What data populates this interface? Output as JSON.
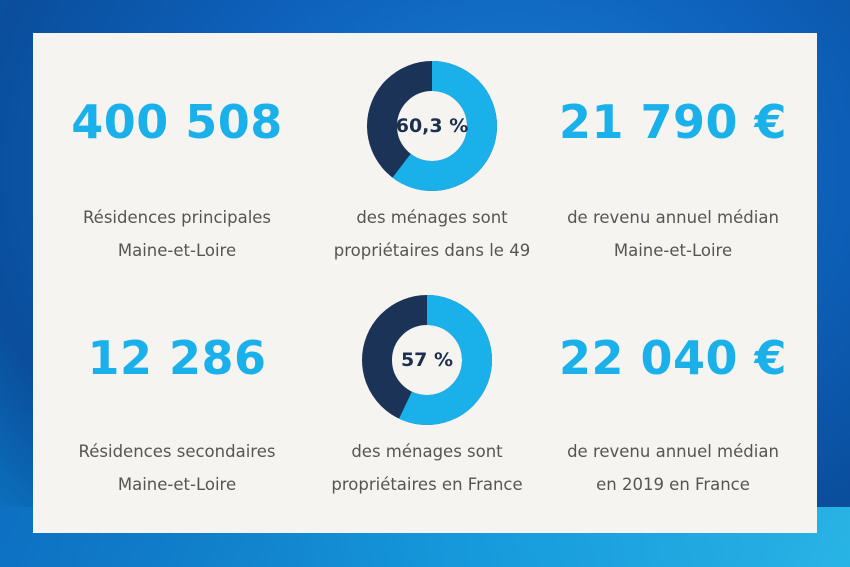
{
  "stats": [
    {
      "value": "400 508",
      "line1": "Résidences principales",
      "line2": "Maine-et-Loire"
    },
    {
      "value": "21 790 €",
      "line1": "de revenu annuel médian",
      "line2": "Maine-et-Loire"
    },
    {
      "value": "12 286",
      "line1": "Résidences secondaires",
      "line2": "Maine-et-Loire"
    },
    {
      "value": "22 040 €",
      "line1": "de revenu annuel médian",
      "line2": "en 2019 en France"
    }
  ],
  "donuts": [
    {
      "label": "60,3 %",
      "fraction": 0.603,
      "line1": "des ménages sont",
      "line2": "propriétaires dans le 49"
    },
    {
      "label": "57 %",
      "fraction": 0.57,
      "line1": "des ménages sont",
      "line2": "propriétaires en France"
    }
  ],
  "colors": {
    "accent": "#1ab0ea",
    "dark": "#1c3358",
    "text": "#555555",
    "card": "#f5f4f1"
  }
}
